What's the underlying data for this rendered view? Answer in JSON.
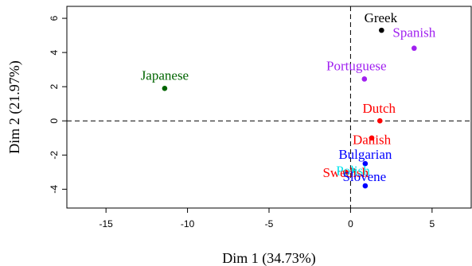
{
  "chart_data": {
    "type": "scatter",
    "xlabel": "Dim 1 (34.73%)",
    "ylabel": "Dim 2 (21.97%)",
    "xlim": [
      -17.4,
      7.4
    ],
    "ylim": [
      -5.1,
      6.7
    ],
    "xticks": [
      -15,
      -10,
      -5,
      0,
      5
    ],
    "yticks": [
      -4,
      -2,
      0,
      2,
      4,
      6
    ],
    "reference_lines": {
      "x": 0,
      "y": 0
    },
    "grid": false,
    "points": [
      {
        "label": "Greek",
        "x": 1.9,
        "y": 5.3,
        "color": "#000000"
      },
      {
        "label": "Spanish",
        "x": 3.9,
        "y": 4.25,
        "color": "#a020f0"
      },
      {
        "label": "Portuguese",
        "x": 0.85,
        "y": 2.45,
        "color": "#a020f0"
      },
      {
        "label": "Japanese",
        "x": -11.4,
        "y": 1.9,
        "color": "#006400"
      },
      {
        "label": "Dutch",
        "x": 1.8,
        "y": 0.0,
        "color": "#ff0000"
      },
      {
        "label": "Danish",
        "x": 1.3,
        "y": -1.0,
        "color": "#ff0000"
      },
      {
        "label": "Bulgarian",
        "x": 0.9,
        "y": -2.5,
        "color": "#0000ff"
      },
      {
        "label": "Swedish",
        "x": -0.3,
        "y": -3.0,
        "color": "#ff0000"
      },
      {
        "label": "Polish",
        "x": 0.15,
        "y": -2.9,
        "color": "#00e5ee"
      },
      {
        "label": "Slovene",
        "x": 0.9,
        "y": -3.8,
        "color": "#0000ff"
      }
    ]
  }
}
